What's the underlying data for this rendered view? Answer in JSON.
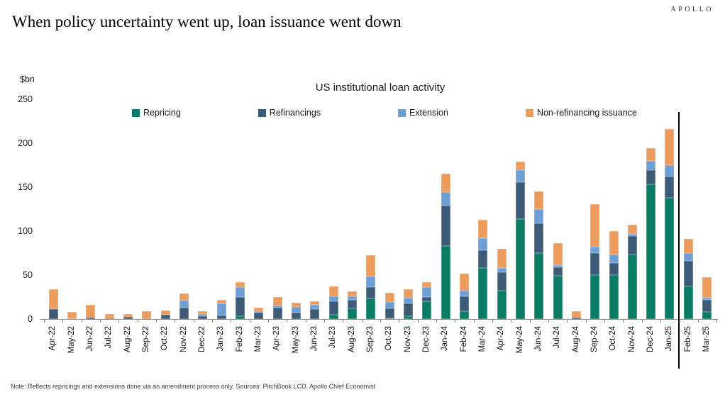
{
  "brand": "APOLLO",
  "title": "When policy uncertainty went up, loan issuance went down",
  "note": "Note: Reflects repricings and extensions done via an amendment process only. Sources: PitchBook LCD, Apollo Chief Economist",
  "chart_data": {
    "type": "bar",
    "stacked": true,
    "title": "US institutional loan activity",
    "unit_label": "$bn",
    "ylim": [
      0,
      250
    ],
    "yticks": [
      0,
      50,
      100,
      150,
      200,
      250
    ],
    "grid": false,
    "legend_position": "top",
    "separator_after": "Jan-25",
    "categories": [
      "Apr-22",
      "May-22",
      "Jun-22",
      "Jul-22",
      "Aug-22",
      "Sep-22",
      "Oct-22",
      "Nov-22",
      "Dec-22",
      "Jan-23",
      "Feb-23",
      "Mar-23",
      "Apr-23",
      "May-23",
      "Jun-23",
      "Jul-23",
      "Aug-23",
      "Sep-23",
      "Oct-23",
      "Nov-23",
      "Dec-23",
      "Jan-24",
      "Feb-24",
      "Mar-24",
      "Apr-24",
      "May-24",
      "Jun-24",
      "Jul-24",
      "Aug-24",
      "Sep-24",
      "Oct-24",
      "Nov-24",
      "Dec-24",
      "Jan-25",
      "Feb-25",
      "Mar-25"
    ],
    "series": [
      {
        "name": "Repricing",
        "color": "#0a7b65",
        "values": [
          0,
          0,
          0,
          0,
          0,
          0,
          0,
          0,
          0,
          0,
          3,
          0,
          0,
          0,
          0,
          4.5,
          12,
          23,
          1,
          3,
          20,
          83,
          9,
          58,
          32,
          114,
          75,
          49,
          0,
          50,
          50,
          73,
          153,
          138,
          37,
          8
        ]
      },
      {
        "name": "Refinancings",
        "color": "#3d5a77",
        "values": [
          11,
          0,
          2,
          1,
          2.5,
          0,
          5,
          13,
          3,
          4,
          22,
          7,
          13,
          7.5,
          11,
          15.5,
          10,
          13.5,
          11.5,
          15,
          5,
          46,
          17,
          20,
          21,
          42,
          34,
          10,
          1.5,
          25,
          14,
          21,
          16,
          24,
          29,
          13.5
        ]
      },
      {
        "name": "Extension",
        "color": "#6d9ed6",
        "values": [
          0,
          1,
          0,
          0,
          0,
          0,
          0,
          8,
          3,
          14,
          11,
          2,
          2,
          6,
          5,
          6,
          4,
          12,
          7,
          6,
          11,
          15,
          6,
          14,
          5,
          13,
          16,
          2,
          0,
          7,
          9,
          3,
          11,
          13,
          9,
          3
        ]
      },
      {
        "name": "Non-refinancing issuance",
        "color": "#ec9b5d",
        "values": [
          23,
          7,
          14,
          5,
          3.5,
          9,
          4.5,
          8,
          3,
          4,
          6,
          4,
          10,
          5,
          4,
          11,
          5.5,
          24,
          10,
          10,
          6,
          21,
          20,
          21,
          22,
          10,
          20,
          25,
          7,
          49,
          27,
          10,
          14,
          41,
          16,
          23.5
        ]
      }
    ]
  }
}
